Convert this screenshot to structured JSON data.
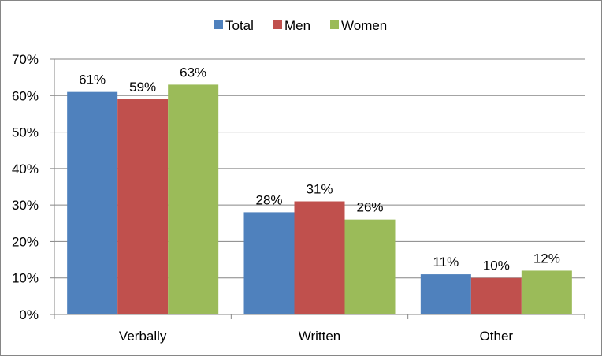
{
  "chart_data": {
    "type": "bar",
    "categories": [
      "Verbally",
      "Written",
      "Other"
    ],
    "series": [
      {
        "name": "Total",
        "values": [
          61,
          28,
          11
        ],
        "labels": [
          "61%",
          "28%",
          "11%"
        ],
        "color": "#4f81bd"
      },
      {
        "name": "Men",
        "values": [
          59,
          31,
          10
        ],
        "labels": [
          "59%",
          "31%",
          "10%"
        ],
        "color": "#c0504d"
      },
      {
        "name": "Women",
        "values": [
          63,
          26,
          12
        ],
        "labels": [
          "63%",
          "26%",
          "12%"
        ],
        "color": "#9bbb59"
      }
    ],
    "y_ticks": [
      {
        "value": 0,
        "label": "0%"
      },
      {
        "value": 10,
        "label": "10%"
      },
      {
        "value": 20,
        "label": "20%"
      },
      {
        "value": 30,
        "label": "30%"
      },
      {
        "value": 40,
        "label": "40%"
      },
      {
        "value": 50,
        "label": "50%"
      },
      {
        "value": 60,
        "label": "60%"
      },
      {
        "value": 70,
        "label": "70%"
      }
    ],
    "ylim": [
      0,
      70
    ],
    "grid": true,
    "legend_position": "top-center",
    "title": "",
    "xlabel": "",
    "ylabel": ""
  }
}
